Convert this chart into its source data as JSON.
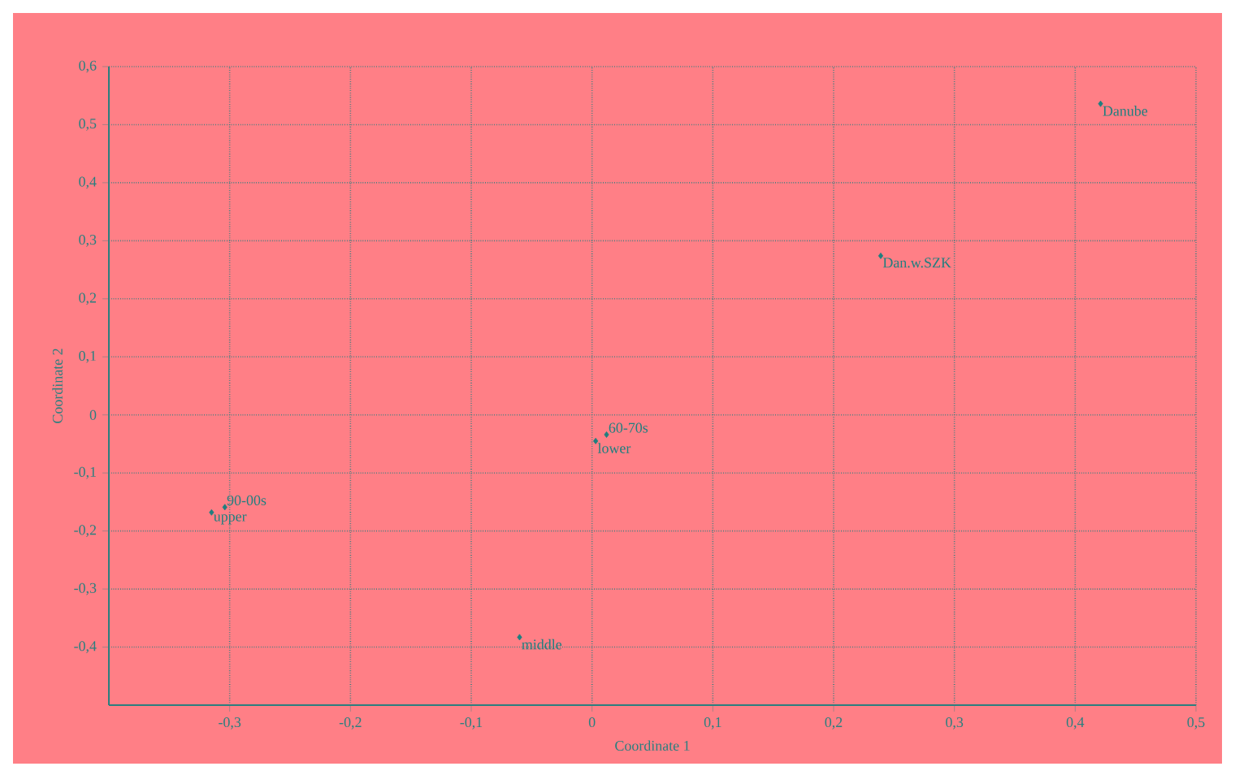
{
  "chart_data": {
    "type": "scatter",
    "xlabel": "Coordinate 1",
    "ylabel": "Coordinate 2",
    "xlim": [
      -0.4,
      0.5
    ],
    "ylim": [
      -0.5,
      0.6
    ],
    "xticks": [
      {
        "value": -0.3,
        "label": "-0,3"
      },
      {
        "value": -0.2,
        "label": "-0,2"
      },
      {
        "value": -0.1,
        "label": "-0,1"
      },
      0,
      {
        "value": 0.1,
        "label": "0,1"
      },
      {
        "value": 0.2,
        "label": "0,2"
      },
      {
        "value": 0.3,
        "label": "0,3"
      },
      {
        "value": 0.4,
        "label": "0,4"
      },
      {
        "value": 0.5,
        "label": "0,5"
      }
    ],
    "yticks": [
      {
        "value": -0.4,
        "label": "-0,4"
      },
      {
        "value": -0.3,
        "label": "-0,3"
      },
      {
        "value": -0.2,
        "label": "-0,2"
      },
      {
        "value": -0.1,
        "label": "-0,1"
      },
      0,
      {
        "value": 0.1,
        "label": "0,1"
      },
      {
        "value": 0.2,
        "label": "0,2"
      },
      {
        "value": 0.3,
        "label": "0,3"
      },
      {
        "value": 0.4,
        "label": "0,4"
      },
      {
        "value": 0.5,
        "label": "0,5"
      },
      {
        "value": 0.6,
        "label": "0,6"
      }
    ],
    "grid": true,
    "marker": "diamond",
    "series": [
      {
        "color": "#1f7f7f",
        "x": [
          -0.315,
          -0.304,
          0.003,
          0.012,
          -0.06,
          0.421,
          0.239
        ],
        "values": [
          -0.168,
          -0.159,
          -0.045,
          -0.034,
          -0.383,
          0.536,
          0.274
        ]
      }
    ],
    "annotations": [
      {
        "text": "upper",
        "x": -0.315,
        "y": -0.168
      },
      {
        "text": "90-00s",
        "x": -0.304,
        "y": -0.159
      },
      {
        "text": "lower",
        "x": 0.003,
        "y": -0.045
      },
      {
        "text": "60-70s",
        "x": 0.012,
        "y": -0.034
      },
      {
        "text": "middle",
        "x": -0.06,
        "y": -0.383
      },
      {
        "text": "Danube",
        "x": 0.421,
        "y": 0.536
      },
      {
        "text": "Dan.w.SZK",
        "x": 0.239,
        "y": 0.274
      }
    ]
  }
}
